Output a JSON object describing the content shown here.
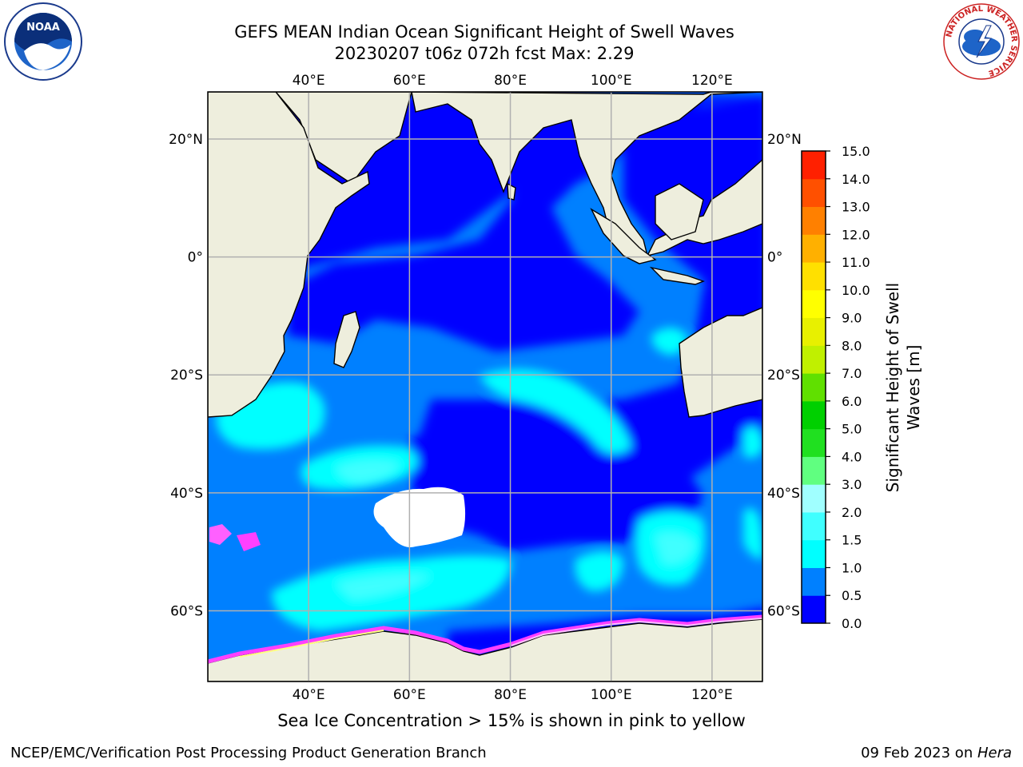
{
  "title": {
    "line1": "GEFS MEAN Indian Ocean Significant Height of Swell Waves",
    "line2": "20230207 t06z 072h fcst   Max: 2.29"
  },
  "map": {
    "lon_ticks": [
      "40°E",
      "60°E",
      "80°E",
      "100°E",
      "120°E"
    ],
    "lat_ticks": [
      "20°N",
      "0°",
      "20°S",
      "40°S",
      "60°S"
    ],
    "lon_range": [
      20,
      130
    ],
    "lat_range": [
      -72,
      28
    ],
    "palette": {
      "land": "#eeeedd",
      "grid": "#b0b0b0"
    }
  },
  "colorbar": {
    "label_line1": "Significant Height of Swell",
    "label_line2": "Waves [m]",
    "ticks": [
      "0.0",
      "0.5",
      "1.0",
      "1.5",
      "2.0",
      "3.0",
      "4.0",
      "5.0",
      "6.0",
      "7.0",
      "8.0",
      "9.0",
      "10.0",
      "11.0",
      "12.0",
      "13.0",
      "14.0",
      "15.0"
    ],
    "colors": [
      "#0000ff",
      "#0080ff",
      "#00ffff",
      "#40ffff",
      "#a0ffff",
      "#60ff80",
      "#20e020",
      "#00d000",
      "#60e000",
      "#c0f000",
      "#e8f000",
      "#ffff00",
      "#ffe000",
      "#ffb000",
      "#ff8000",
      "#ff5000",
      "#ff2000"
    ]
  },
  "ice_note": "Sea Ice Concentration > 15% is shown in pink to yellow",
  "footer": {
    "left": "NCEP/EMC/Verification Post Processing Product Generation Branch",
    "date": "09 Feb 2023 on ",
    "host": "Hera"
  },
  "logos": {
    "noaa_label": "NOAA",
    "nws_ring_text": "NATIONAL WEATHER SERVICE"
  }
}
